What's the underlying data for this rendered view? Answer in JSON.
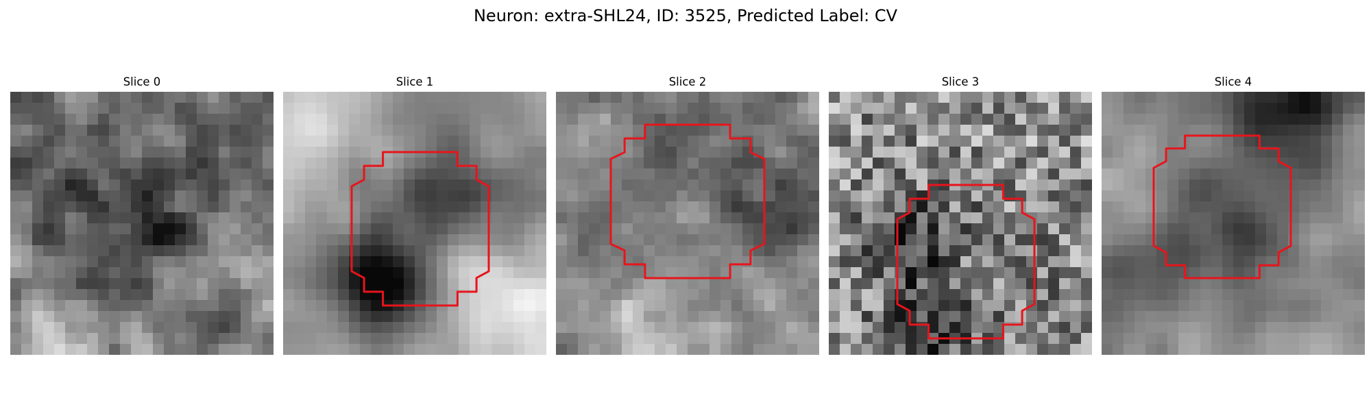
{
  "figure": {
    "title": "Neuron: extra-SHL24, ID: 3525, Predicted Label: CV",
    "colormap": "gray",
    "contour_color": "#e8141c",
    "grid_size": 24
  },
  "slices": [
    {
      "title": "Slice 0",
      "seed": 11,
      "blobs": [
        {
          "c": [
            6,
            10
          ],
          "r": 4,
          "s": -0.25
        },
        {
          "c": [
            13,
            12
          ],
          "r": 3.5,
          "s": -0.3
        },
        {
          "c": [
            17,
            17
          ],
          "r": 4,
          "s": 0.18
        },
        {
          "c": [
            19,
            20
          ],
          "r": 3,
          "s": -0.28
        },
        {
          "c": [
            3,
            20
          ],
          "r": 4,
          "s": 0.1
        },
        {
          "c": [
            20,
            4
          ],
          "r": 4,
          "s": -0.15
        }
      ],
      "noise": 0.55,
      "base": 0.5,
      "smooth": 1,
      "contour": null
    },
    {
      "title": "Slice 1",
      "seed": 23,
      "blobs": [
        {
          "c": [
            12,
            11
          ],
          "r": 7,
          "s": -0.22
        },
        {
          "c": [
            8,
            17
          ],
          "r": 2.6,
          "s": -0.6
        },
        {
          "c": [
            16,
            9
          ],
          "r": 3.5,
          "s": -0.12
        },
        {
          "c": [
            2,
            3
          ],
          "r": 5,
          "s": 0.25
        },
        {
          "c": [
            21,
            19
          ],
          "r": 4,
          "s": 0.3
        },
        {
          "c": [
            16,
            16
          ],
          "r": 2.5,
          "s": 0.25
        }
      ],
      "noise": 0.3,
      "base": 0.62,
      "smooth": 2,
      "contour": {
        "cx": 12.5,
        "cy": 12.5,
        "rx": 6.25,
        "ry": 7.0,
        "k": 0.36
      }
    },
    {
      "title": "Slice 2",
      "seed": 37,
      "blobs": [
        {
          "c": [
            12,
            10
          ],
          "r": 5.5,
          "s": -0.25
        },
        {
          "c": [
            11,
            11
          ],
          "r": 3,
          "s": 0.25
        },
        {
          "c": [
            4,
            4
          ],
          "r": 3,
          "s": 0.05
        },
        {
          "c": [
            17,
            18
          ],
          "r": 4,
          "s": 0.15
        },
        {
          "c": [
            7,
            22
          ],
          "r": 3,
          "s": 0.35
        },
        {
          "c": [
            20,
            12
          ],
          "r": 3,
          "s": -0.2
        }
      ],
      "noise": 0.42,
      "base": 0.52,
      "smooth": 1,
      "contour": {
        "cx": 12.0,
        "cy": 10.0,
        "rx": 7.0,
        "ry": 7.0,
        "k": 0.36
      }
    },
    {
      "title": "Slice 3",
      "seed": 51,
      "blobs": [
        {
          "c": [
            14,
            15
          ],
          "r": 6.5,
          "s": -0.05
        },
        {
          "c": [
            7,
            13
          ],
          "r": 2.5,
          "s": -0.35
        },
        {
          "c": [
            9,
            21
          ],
          "r": 3,
          "s": -0.3
        },
        {
          "c": [
            19,
            4
          ],
          "r": 4,
          "s": 0.05
        }
      ],
      "noise": 0.6,
      "base": 0.55,
      "smooth": 0,
      "contour": {
        "cx": 12.5,
        "cy": 15.5,
        "rx": 6.25,
        "ry": 7.0,
        "k": 0.36
      }
    },
    {
      "title": "Slice 4",
      "seed": 67,
      "blobs": [
        {
          "c": [
            11,
            10
          ],
          "r": 6,
          "s": -0.3
        },
        {
          "c": [
            17,
            1
          ],
          "r": 3,
          "s": -0.4
        },
        {
          "c": [
            4,
            7
          ],
          "r": 4,
          "s": 0.2
        },
        {
          "c": [
            2,
            17
          ],
          "r": 3,
          "s": -0.2
        },
        {
          "c": [
            19,
            14
          ],
          "r": 4,
          "s": 0.15
        },
        {
          "c": [
            5,
            21
          ],
          "r": 4,
          "s": 0.1
        }
      ],
      "noise": 0.32,
      "base": 0.55,
      "smooth": 2,
      "contour": {
        "cx": 11.0,
        "cy": 10.5,
        "rx": 6.25,
        "ry": 6.5,
        "k": 0.36
      }
    }
  ]
}
